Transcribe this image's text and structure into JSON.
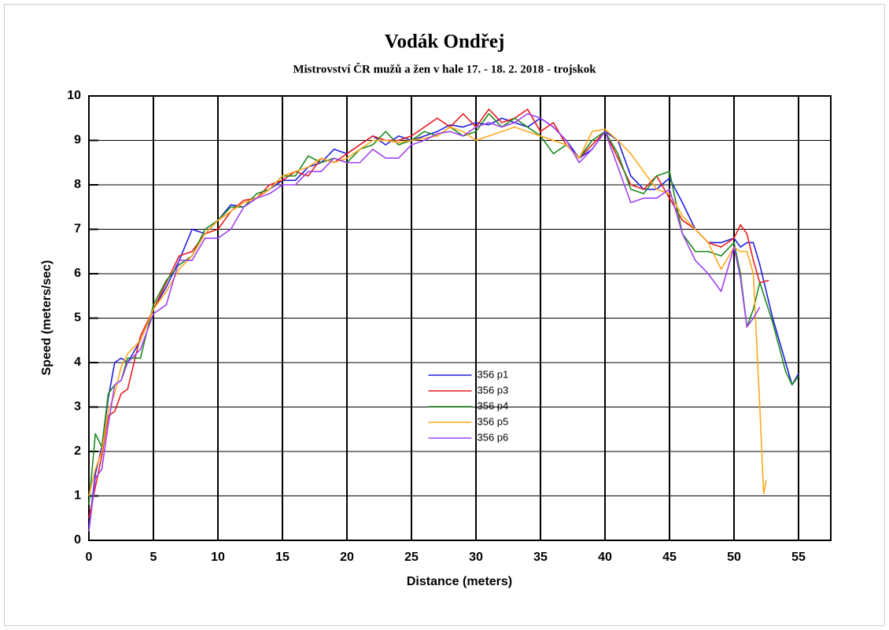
{
  "chart_data": {
    "type": "line",
    "title": "Vodák Ondřej",
    "subtitle": "Mistrovství ČR mužů a žen v hale 17. - 18. 2. 2018 - trojskok",
    "x_label": "Distance (meters)",
    "y_label": "Speed (meters/sec)",
    "xlim": [
      0,
      57.5
    ],
    "ylim": [
      0,
      10
    ],
    "xticks": [
      0,
      5,
      10,
      15,
      20,
      25,
      30,
      35,
      40,
      45,
      50,
      55
    ],
    "yticks": [
      0,
      1,
      2,
      3,
      4,
      5,
      6,
      7,
      8,
      9,
      10
    ],
    "grid": true,
    "legend": "center",
    "series": [
      {
        "name": "356 p1",
        "color": "#1f1fe0",
        "x": [
          0,
          0.5,
          1,
          1.5,
          2,
          2.5,
          3,
          4,
          5,
          6,
          7,
          8,
          9,
          10,
          11,
          12,
          13,
          14,
          15,
          16,
          17,
          18,
          19,
          20,
          21,
          22,
          23,
          24,
          25,
          26,
          27,
          28,
          29,
          30,
          31,
          32,
          33,
          34,
          35,
          36,
          37,
          38,
          39,
          40,
          41,
          42,
          43,
          44,
          45,
          46,
          47,
          48,
          49,
          50,
          50.5,
          51,
          51.5,
          52,
          53,
          54,
          54.5,
          55
        ],
        "values": [
          0.3,
          1.5,
          2.1,
          3.2,
          4.0,
          4.1,
          4.0,
          4.5,
          5.2,
          5.7,
          6.3,
          7.0,
          6.9,
          7.2,
          7.55,
          7.5,
          7.7,
          7.9,
          8.1,
          8.1,
          8.4,
          8.5,
          8.8,
          8.7,
          8.9,
          9.1,
          8.9,
          9.1,
          9.0,
          9.1,
          9.2,
          9.35,
          9.3,
          9.4,
          9.35,
          9.5,
          9.4,
          9.3,
          9.5,
          9.3,
          9.0,
          8.6,
          8.8,
          9.2,
          9.0,
          8.2,
          7.9,
          7.9,
          8.15,
          7.6,
          7.0,
          6.7,
          6.7,
          6.8,
          6.6,
          6.7,
          6.7,
          6.2,
          5.0,
          4.0,
          3.5,
          3.75
        ]
      },
      {
        "name": "356 p3",
        "color": "#e81e1e",
        "x": [
          0,
          0.5,
          1,
          1.5,
          2,
          2.5,
          3,
          4,
          5,
          6,
          7,
          8,
          9,
          10,
          11,
          12,
          13,
          14,
          15,
          16,
          17,
          18,
          19,
          20,
          21,
          22,
          23,
          24,
          25,
          26,
          27,
          28,
          29,
          30,
          31,
          32,
          33,
          34,
          35,
          36,
          37,
          38,
          39,
          40,
          41,
          42,
          43,
          44,
          45,
          46,
          47,
          48,
          49,
          50,
          50.5,
          51,
          51.5,
          52,
          52.7
        ],
        "values": [
          0.5,
          1.2,
          1.9,
          2.8,
          2.9,
          3.3,
          3.4,
          4.6,
          5.2,
          5.8,
          6.4,
          6.5,
          6.9,
          7.0,
          7.4,
          7.65,
          7.7,
          8.0,
          8.1,
          8.3,
          8.2,
          8.6,
          8.5,
          8.7,
          8.9,
          9.1,
          9.0,
          9.0,
          9.1,
          9.3,
          9.5,
          9.3,
          9.6,
          9.3,
          9.7,
          9.4,
          9.5,
          9.7,
          9.2,
          9.4,
          8.9,
          8.6,
          8.9,
          9.2,
          8.6,
          8.0,
          7.9,
          8.2,
          7.7,
          7.2,
          7.0,
          6.7,
          6.6,
          6.8,
          7.1,
          6.9,
          6.3,
          5.8,
          5.85
        ]
      },
      {
        "name": "356 p4",
        "color": "#1e8a1e",
        "x": [
          0,
          0.5,
          1,
          1.5,
          2,
          2.5,
          3,
          4,
          5,
          6,
          7,
          8,
          9,
          10,
          11,
          12,
          13,
          14,
          15,
          16,
          17,
          18,
          19,
          20,
          21,
          22,
          23,
          24,
          25,
          26,
          27,
          28,
          29,
          30,
          31,
          32,
          33,
          34,
          35,
          36,
          37,
          38,
          39,
          40,
          41,
          42,
          43,
          44,
          45,
          46,
          47,
          48,
          49,
          50,
          50.5,
          51,
          51.5,
          52,
          53,
          54,
          54.5,
          55
        ],
        "values": [
          0.8,
          2.4,
          2.1,
          3.3,
          3.5,
          3.6,
          4.1,
          4.1,
          5.3,
          5.85,
          6.2,
          6.4,
          7.0,
          7.2,
          7.5,
          7.5,
          7.8,
          7.9,
          8.2,
          8.2,
          8.65,
          8.5,
          8.6,
          8.5,
          8.8,
          8.9,
          9.2,
          8.9,
          9.0,
          9.2,
          9.1,
          9.3,
          9.1,
          9.2,
          9.6,
          9.3,
          9.5,
          9.3,
          9.1,
          8.7,
          8.9,
          8.6,
          9.0,
          9.2,
          8.7,
          7.9,
          7.8,
          8.2,
          8.3,
          6.9,
          6.5,
          6.5,
          6.4,
          6.7,
          6.0,
          4.8,
          5.2,
          5.8,
          4.9,
          3.8,
          3.5,
          3.7
        ]
      },
      {
        "name": "356 p5",
        "color": "#ffa81e",
        "x": [
          0,
          0.5,
          1,
          1.5,
          2,
          2.5,
          3,
          4,
          5,
          6,
          7,
          8,
          9,
          10,
          11,
          12,
          13,
          14,
          15,
          16,
          17,
          18,
          19,
          20,
          21,
          22,
          23,
          24,
          25,
          26,
          27,
          28,
          29,
          30,
          31,
          32,
          33,
          34,
          35,
          36,
          37,
          38,
          39,
          40,
          41,
          42,
          43,
          44,
          45,
          46,
          47,
          48,
          49,
          50,
          50.5,
          51,
          51.5,
          52,
          52.3,
          52.5
        ],
        "values": [
          1.0,
          1.6,
          2.0,
          2.9,
          3.3,
          3.9,
          4.2,
          4.5,
          5.2,
          5.6,
          6.1,
          6.4,
          6.9,
          7.2,
          7.4,
          7.6,
          7.7,
          7.9,
          8.2,
          8.3,
          8.4,
          8.6,
          8.5,
          8.6,
          8.8,
          9.0,
          9.0,
          8.95,
          9.0,
          9.05,
          9.1,
          9.3,
          9.2,
          9.0,
          9.1,
          9.2,
          9.3,
          9.2,
          9.1,
          9.0,
          8.9,
          8.6,
          9.2,
          9.25,
          9.0,
          8.7,
          8.3,
          7.9,
          7.8,
          7.3,
          7.0,
          6.7,
          6.1,
          6.6,
          6.5,
          6.5,
          6.0,
          3.0,
          1.05,
          1.35
        ]
      },
      {
        "name": "356 p6",
        "color": "#a040f0",
        "x": [
          0,
          0.5,
          1,
          1.5,
          2,
          2.5,
          3,
          4,
          5,
          6,
          7,
          8,
          9,
          10,
          11,
          12,
          13,
          14,
          15,
          16,
          17,
          18,
          19,
          20,
          21,
          22,
          23,
          24,
          25,
          26,
          27,
          28,
          29,
          30,
          31,
          32,
          33,
          34,
          35,
          36,
          37,
          38,
          39,
          40,
          41,
          42,
          43,
          44,
          45,
          46,
          47,
          48,
          49,
          50,
          50.5,
          51,
          51.5,
          52
        ],
        "values": [
          0.2,
          1.4,
          1.6,
          2.6,
          3.5,
          3.6,
          4.0,
          4.3,
          5.1,
          5.3,
          6.3,
          6.3,
          6.8,
          6.8,
          7.0,
          7.5,
          7.7,
          7.8,
          8.0,
          8.0,
          8.3,
          8.3,
          8.6,
          8.5,
          8.5,
          8.8,
          8.6,
          8.6,
          8.9,
          9.0,
          9.15,
          9.2,
          9.1,
          9.3,
          9.4,
          9.3,
          9.4,
          9.6,
          9.5,
          9.3,
          9.0,
          8.5,
          8.8,
          9.2,
          8.4,
          7.6,
          7.7,
          7.7,
          7.9,
          6.9,
          6.3,
          6.0,
          5.6,
          6.6,
          5.9,
          4.8,
          5.0,
          5.25
        ]
      }
    ]
  }
}
